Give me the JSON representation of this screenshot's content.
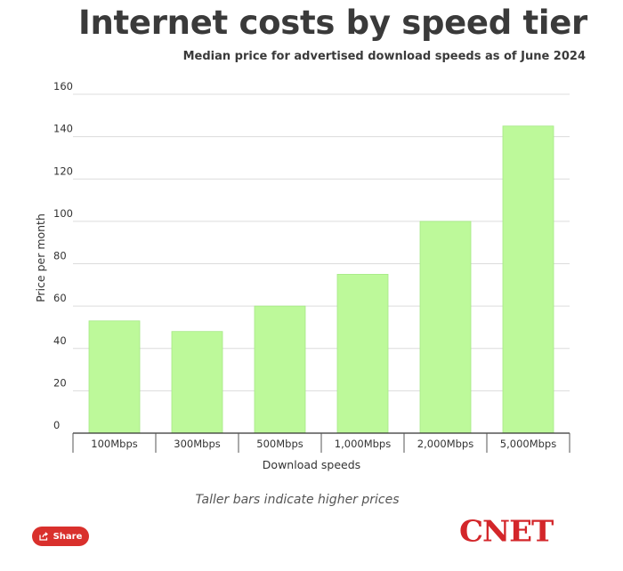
{
  "title": "Internet costs by speed tier",
  "subtitle": "Median price for advertised download speeds as of June 2024",
  "caption": "Taller bars indicate higher prices",
  "share": {
    "label": "Share",
    "icon": "share-icon"
  },
  "brand": {
    "logo_text": "CNET",
    "color": "#d3262a"
  },
  "colors": {
    "bar": "#bdf99a",
    "bar_stroke": "#a6e886",
    "grid": "#dcdcdc",
    "share_button": "#d9302c"
  },
  "chart_data": {
    "type": "bar",
    "title": "Internet costs by speed tier",
    "subtitle": "Median price for advertised download speeds as of June 2024",
    "categories": [
      "100Mbps",
      "300Mbps",
      "500Mbps",
      "1,000Mbps",
      "2,000Mbps",
      "5,000Mbps"
    ],
    "values": [
      53,
      48,
      60,
      75,
      100,
      145
    ],
    "xlabel": "Download speeds",
    "ylabel": "Price per month",
    "ylim": [
      0,
      160
    ],
    "yticks": [
      0,
      20,
      40,
      60,
      80,
      100,
      120,
      140,
      160
    ],
    "grid": true,
    "legend": "none"
  }
}
